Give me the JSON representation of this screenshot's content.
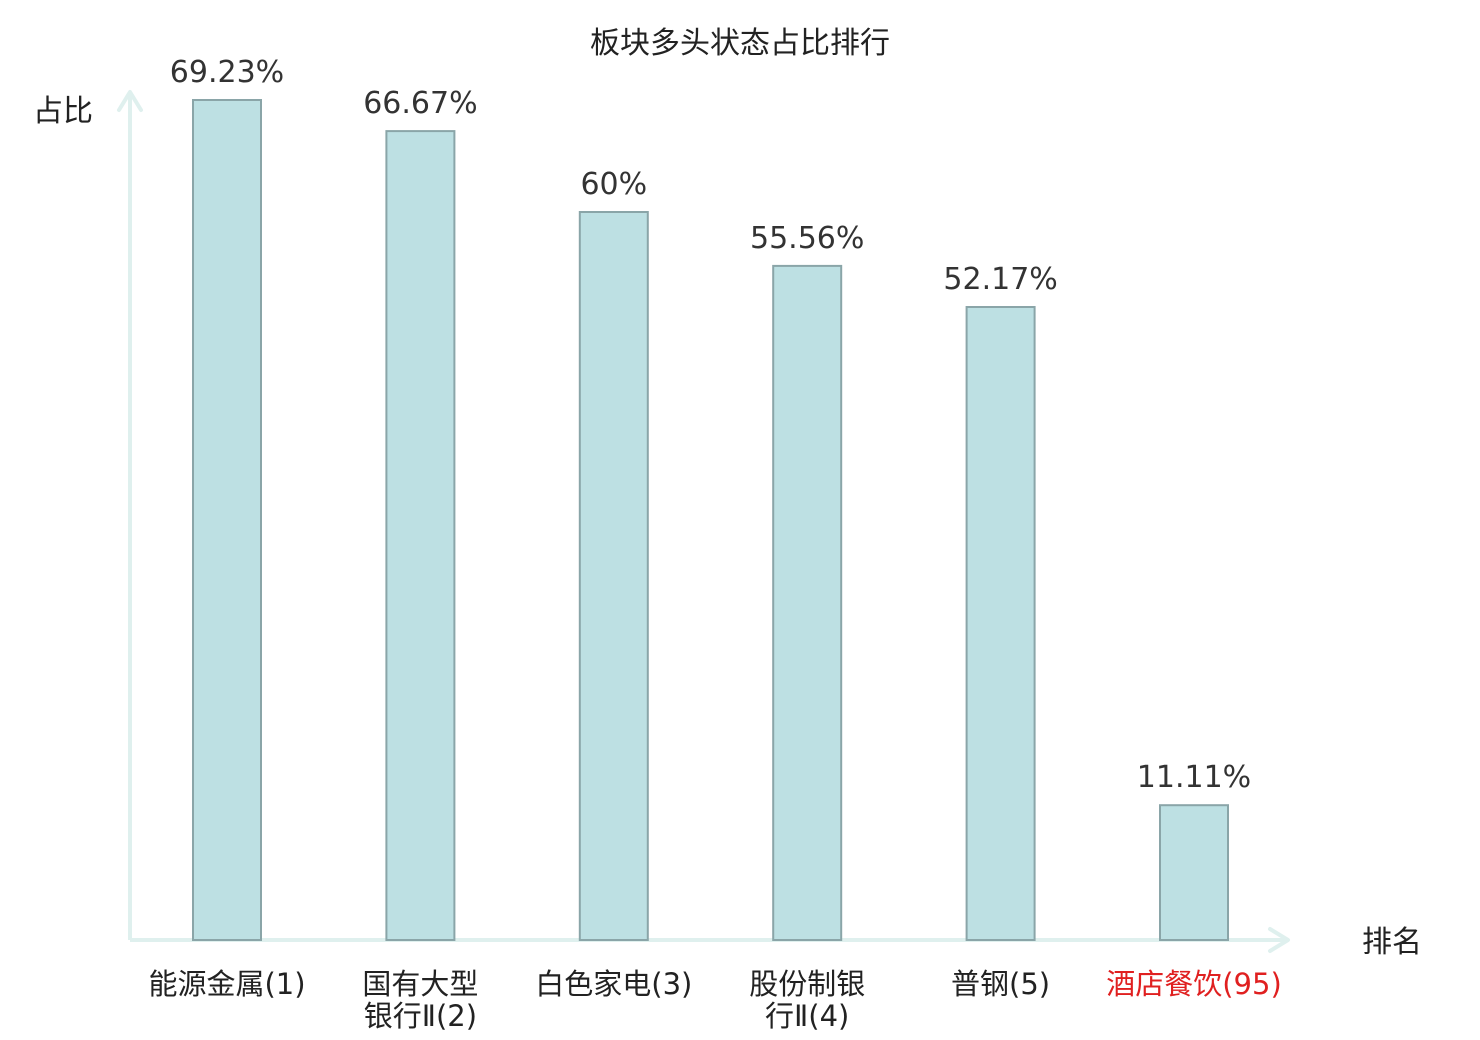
{
  "chart_data": {
    "type": "bar",
    "title": "板块多头状态占比排行",
    "xlabel": "排名",
    "ylabel": "占比",
    "categories": [
      {
        "name": "能源金属",
        "rank": "(1)",
        "lines": [
          "能源金属(1)"
        ]
      },
      {
        "name": "国有大型银行Ⅱ",
        "rank": "(2)",
        "lines": [
          "国有大型",
          "银行Ⅱ(2)"
        ]
      },
      {
        "name": "白色家电",
        "rank": "(3)",
        "lines": [
          "白色家电(3)"
        ]
      },
      {
        "name": "股份制银行Ⅱ",
        "rank": "(4)",
        "lines": [
          "股份制银",
          "行Ⅱ(4)"
        ]
      },
      {
        "name": "普钢",
        "rank": "(5)",
        "lines": [
          "普钢(5)"
        ]
      },
      {
        "name": "酒店餐饮",
        "rank": "(95)",
        "lines": [
          "酒店餐饮(95)"
        ]
      }
    ],
    "values": [
      69.23,
      66.67,
      60,
      55.56,
      52.17,
      11.11
    ],
    "value_labels": [
      "69.23%",
      "66.67%",
      "60%",
      "55.56%",
      "52.17%",
      "11.11%"
    ],
    "highlight_index": 5,
    "ylim": [
      0,
      69.23
    ],
    "grid": false,
    "legend": "none"
  },
  "colors": {
    "bar_fill": "#bde0e3",
    "bar_stroke": "#8aa5a8",
    "axis": "#dff0ee",
    "text": "#222222",
    "value_text": "#333333",
    "highlight": "#e02020"
  }
}
